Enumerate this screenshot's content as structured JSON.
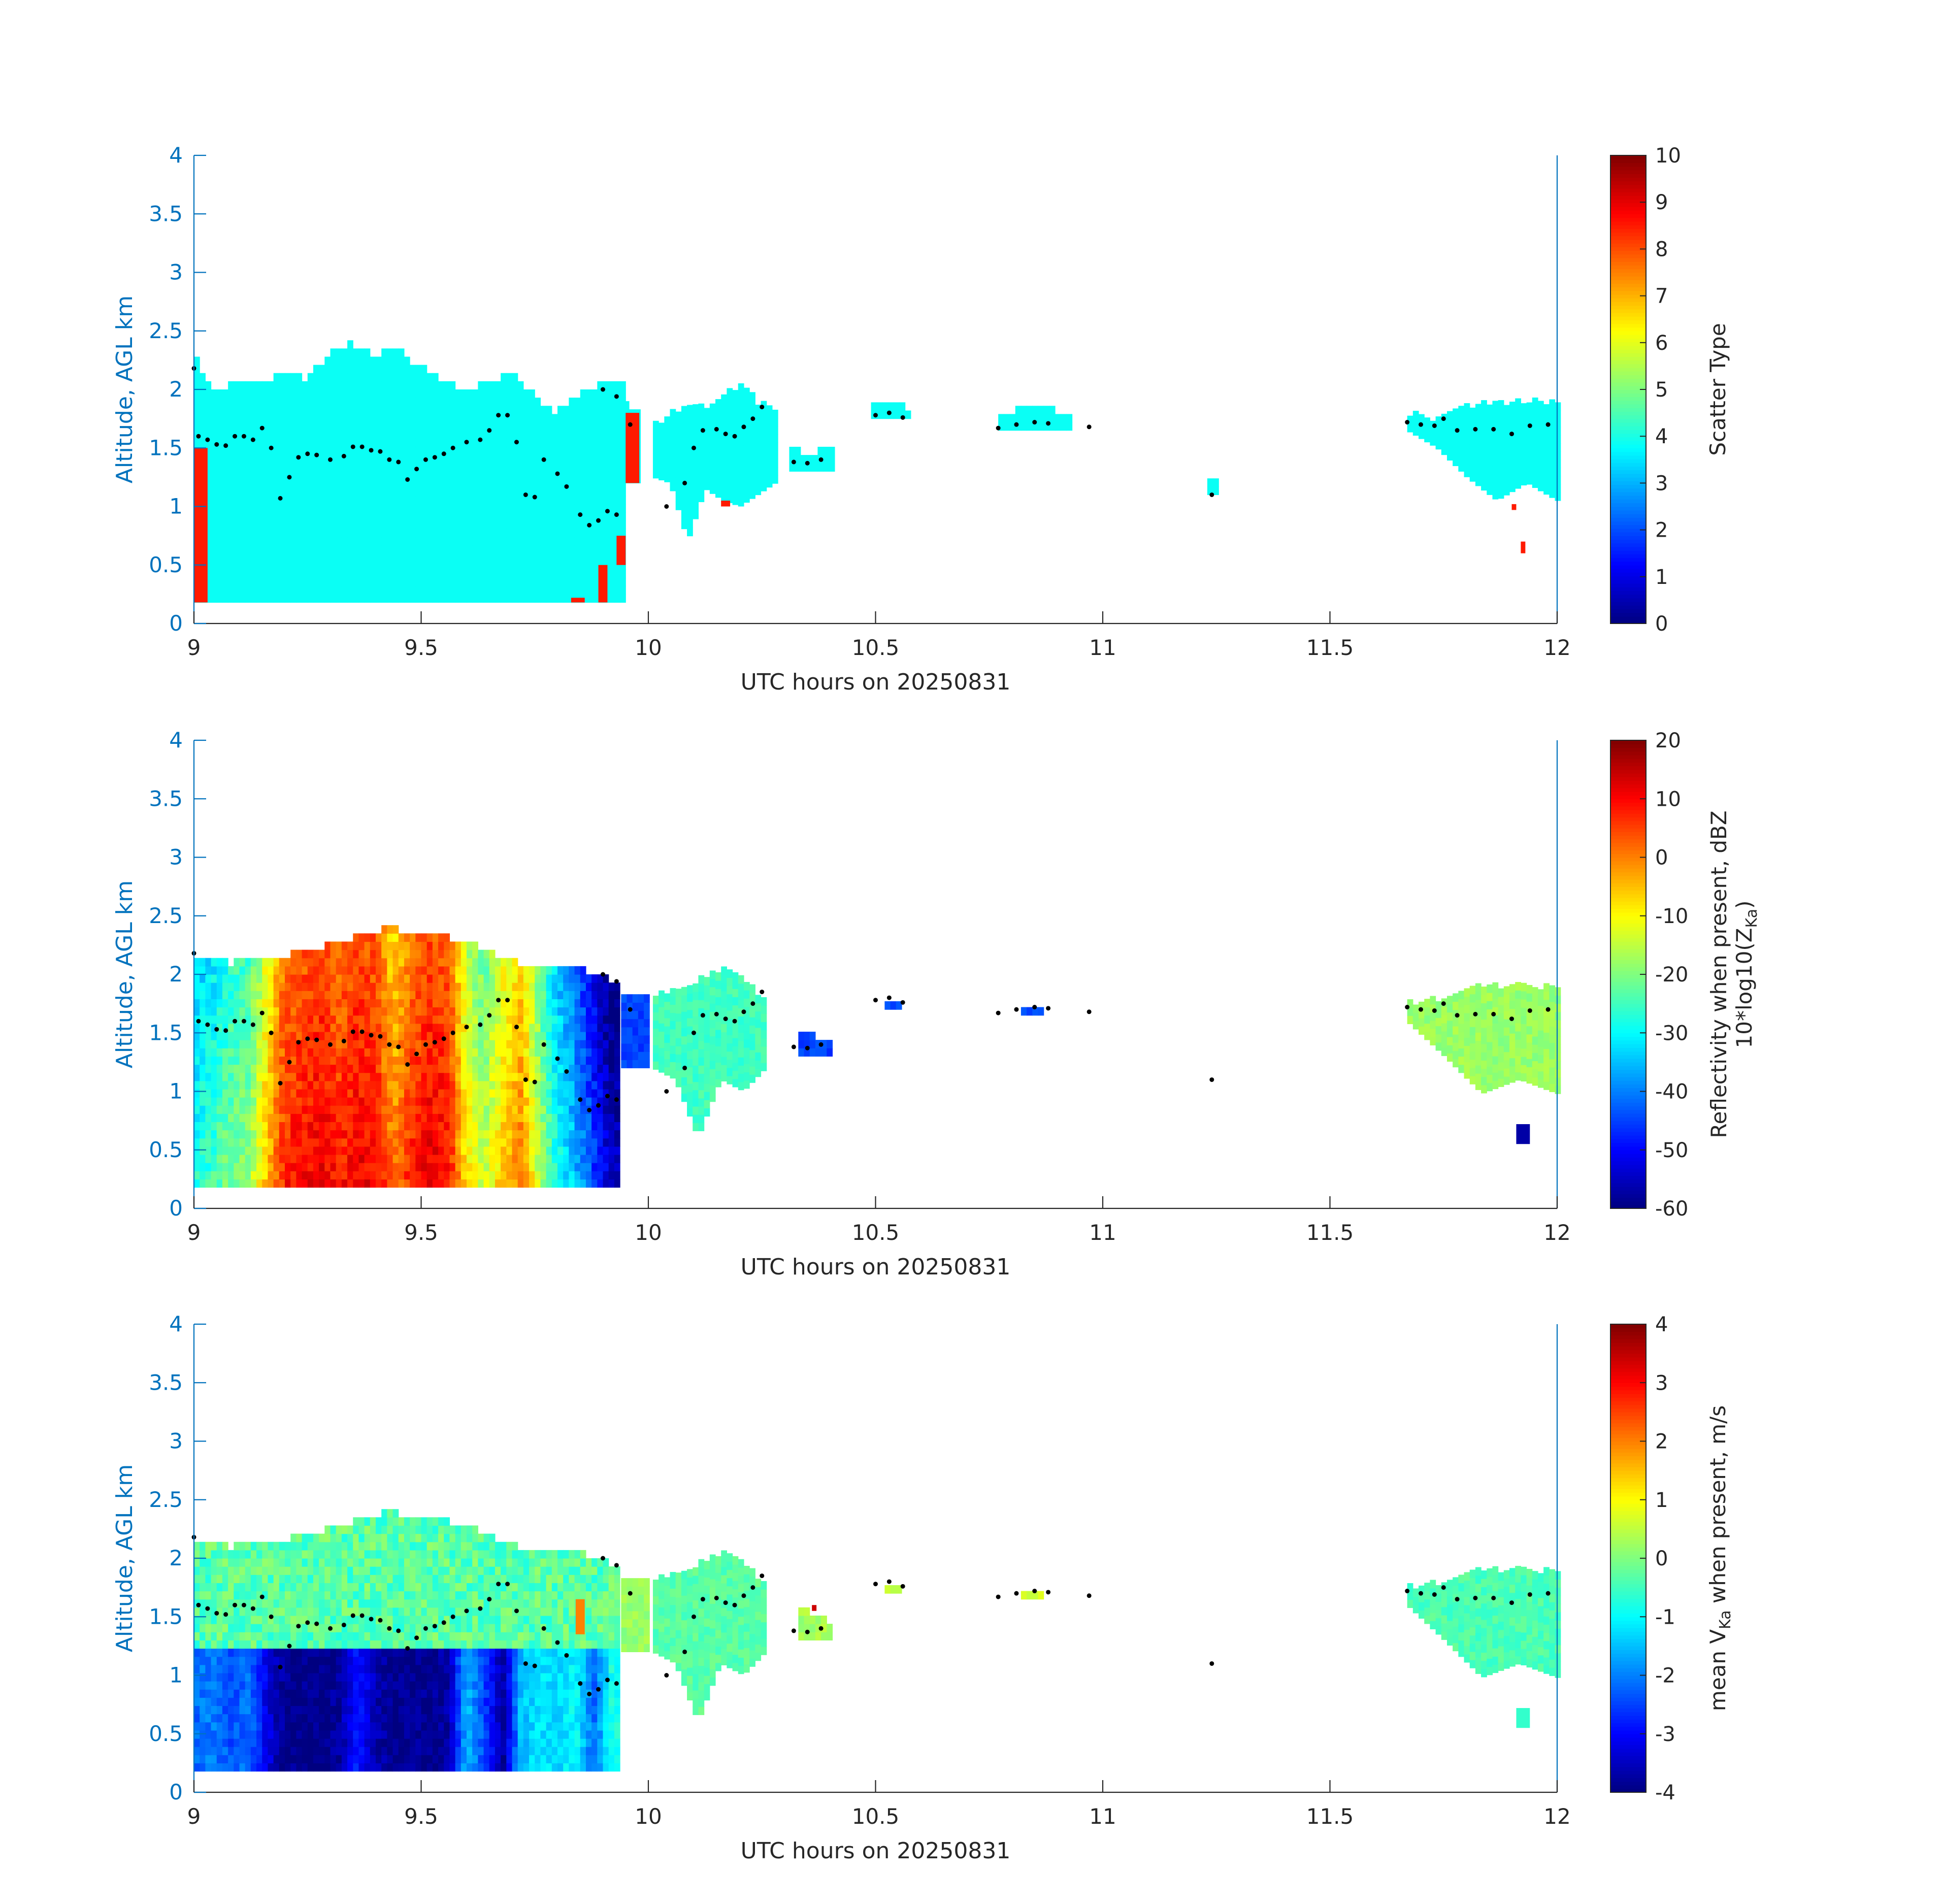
{
  "figure": {
    "background": "#ffffff"
  },
  "colormap": "jet",
  "chart_data": [
    {
      "type": "heatmap",
      "x_range": [
        9,
        12
      ],
      "y_range": [
        0,
        4
      ],
      "xticks": [
        9,
        9.5,
        10,
        10.5,
        11,
        11.5,
        12
      ],
      "yticks": [
        0,
        0.5,
        1,
        1.5,
        2,
        2.5,
        3,
        3.5,
        4
      ],
      "xtick_labels": [
        "9",
        "9.5",
        "10",
        "10.5",
        "11",
        "11.5",
        "12"
      ],
      "ytick_labels": [
        "0",
        "0.5",
        "1",
        "1.5",
        "2",
        "2.5",
        "3",
        "3.5",
        "4"
      ],
      "xlabel": "UTC hours on 20250831",
      "ylabel": "Altitude, AGL km",
      "colorbar": {
        "range": [
          0,
          10
        ],
        "ticks": [
          0,
          1,
          2,
          3,
          4,
          5,
          6,
          7,
          8,
          9,
          10
        ],
        "tick_labels": [
          "0",
          "1",
          "2",
          "3",
          "4",
          "5",
          "6",
          "7",
          "8",
          "9",
          "10"
        ],
        "label": "Scatter Type"
      },
      "regions": [
        {
          "x": [
            9.0,
            9.94
          ],
          "top": [
            2.3,
            1.95,
            2.1,
            2.05,
            2.15,
            2.1,
            2.3,
            2.4,
            2.3,
            2.35,
            2.2,
            2.1,
            2.0,
            2.05,
            2.15,
            2.0,
            1.8,
            1.95,
            2.05,
            2.1
          ],
          "bottom": 0.18,
          "value": 3.85
        },
        {
          "x": [
            9.92,
            9.98
          ],
          "top": [
            1.95,
            1.8
          ],
          "bottom": 1.2,
          "value": 3.85
        },
        {
          "x": [
            10.01,
            10.28
          ],
          "top": [
            1.7,
            1.8,
            1.9,
            1.85,
            1.95,
            2.05,
            1.9,
            1.8
          ],
          "bottom": [
            1.25,
            1.2,
            0.7,
            1.15,
            1.05,
            1.0,
            1.1,
            1.2
          ],
          "value": 3.85
        },
        {
          "x": [
            10.31,
            10.4
          ],
          "top": [
            1.5,
            1.45,
            1.5
          ],
          "bottom": 1.3,
          "value": 3.85
        },
        {
          "x": [
            10.49,
            10.57
          ],
          "top": [
            1.9,
            1.85
          ],
          "bottom": 1.75,
          "value": 3.85
        },
        {
          "x": [
            10.77,
            10.93
          ],
          "top": [
            1.8,
            1.85,
            1.8
          ],
          "bottom": 1.65,
          "value": 3.85
        },
        {
          "x": [
            11.23,
            11.25
          ],
          "top": [
            1.25
          ],
          "bottom": 1.1,
          "value": 3.85
        },
        {
          "x": [
            11.67,
            12.0
          ],
          "top": [
            1.8,
            1.75,
            1.85,
            1.9,
            1.9,
            1.9
          ],
          "bottom": [
            1.65,
            1.5,
            1.25,
            1.05,
            1.2,
            1.05
          ],
          "value": 3.85
        }
      ],
      "patches": [
        {
          "x": [
            9.0,
            9.03
          ],
          "y": [
            0.18,
            1.5
          ],
          "value": 8.5
        },
        {
          "x": [
            9.83,
            9.86
          ],
          "y": [
            0.18,
            0.22
          ],
          "value": 8.5
        },
        {
          "x": [
            9.89,
            9.91
          ],
          "y": [
            0.18,
            0.5
          ],
          "value": 8.5
        },
        {
          "x": [
            9.93,
            9.95
          ],
          "y": [
            0.5,
            0.75
          ],
          "value": 8.5
        },
        {
          "x": [
            9.95,
            9.98
          ],
          "y": [
            1.2,
            1.8
          ],
          "value": 8.5
        },
        {
          "x": [
            10.16,
            10.18
          ],
          "y": [
            1.0,
            1.05
          ],
          "value": 8.5
        },
        {
          "x": [
            11.9,
            11.91
          ],
          "y": [
            0.97,
            1.02
          ],
          "value": 8.5
        },
        {
          "x": [
            11.92,
            11.93
          ],
          "y": [
            0.6,
            0.7
          ],
          "value": 8.5
        }
      ],
      "melting_layer_points": [
        [
          9.0,
          2.18
        ],
        [
          9.01,
          1.6
        ],
        [
          9.03,
          1.57
        ],
        [
          9.05,
          1.53
        ],
        [
          9.07,
          1.52
        ],
        [
          9.09,
          1.6
        ],
        [
          9.11,
          1.6
        ],
        [
          9.13,
          1.57
        ],
        [
          9.15,
          1.67
        ],
        [
          9.17,
          1.5
        ],
        [
          9.19,
          1.07
        ],
        [
          9.21,
          1.25
        ],
        [
          9.23,
          1.42
        ],
        [
          9.25,
          1.45
        ],
        [
          9.27,
          1.44
        ],
        [
          9.3,
          1.4
        ],
        [
          9.33,
          1.43
        ],
        [
          9.35,
          1.51
        ],
        [
          9.37,
          1.51
        ],
        [
          9.39,
          1.48
        ],
        [
          9.41,
          1.47
        ],
        [
          9.43,
          1.4
        ],
        [
          9.45,
          1.38
        ],
        [
          9.47,
          1.23
        ],
        [
          9.49,
          1.32
        ],
        [
          9.51,
          1.4
        ],
        [
          9.53,
          1.42
        ],
        [
          9.55,
          1.45
        ],
        [
          9.57,
          1.5
        ],
        [
          9.6,
          1.55
        ],
        [
          9.63,
          1.57
        ],
        [
          9.65,
          1.65
        ],
        [
          9.67,
          1.78
        ],
        [
          9.69,
          1.78
        ],
        [
          9.71,
          1.55
        ],
        [
          9.73,
          1.1
        ],
        [
          9.75,
          1.08
        ],
        [
          9.77,
          1.4
        ],
        [
          9.8,
          1.28
        ],
        [
          9.82,
          1.17
        ],
        [
          9.85,
          0.93
        ],
        [
          9.87,
          0.84
        ],
        [
          9.89,
          0.88
        ],
        [
          9.91,
          0.96
        ],
        [
          9.93,
          0.93
        ],
        [
          9.9,
          2.0
        ],
        [
          9.93,
          1.94
        ],
        [
          9.96,
          1.7
        ],
        [
          10.04,
          1.0
        ],
        [
          10.08,
          1.2
        ],
        [
          10.1,
          1.5
        ],
        [
          10.12,
          1.65
        ],
        [
          10.15,
          1.66
        ],
        [
          10.17,
          1.62
        ],
        [
          10.19,
          1.6
        ],
        [
          10.21,
          1.68
        ],
        [
          10.23,
          1.75
        ],
        [
          10.25,
          1.85
        ],
        [
          10.32,
          1.38
        ],
        [
          10.35,
          1.37
        ],
        [
          10.38,
          1.4
        ],
        [
          10.5,
          1.78
        ],
        [
          10.53,
          1.8
        ],
        [
          10.56,
          1.76
        ],
        [
          10.77,
          1.67
        ],
        [
          10.81,
          1.7
        ],
        [
          10.85,
          1.72
        ],
        [
          10.88,
          1.71
        ],
        [
          10.97,
          1.68
        ],
        [
          11.24,
          1.1
        ],
        [
          11.67,
          1.72
        ],
        [
          11.7,
          1.7
        ],
        [
          11.73,
          1.69
        ],
        [
          11.75,
          1.75
        ],
        [
          11.78,
          1.65
        ],
        [
          11.82,
          1.66
        ],
        [
          11.86,
          1.66
        ],
        [
          11.9,
          1.62
        ],
        [
          11.94,
          1.69
        ],
        [
          11.98,
          1.7
        ]
      ]
    },
    {
      "type": "heatmap",
      "x_range": [
        9,
        12
      ],
      "y_range": [
        0,
        4
      ],
      "xticks": [
        9,
        9.5,
        10,
        10.5,
        11,
        11.5,
        12
      ],
      "yticks": [
        0,
        0.5,
        1,
        1.5,
        2,
        2.5,
        3,
        3.5,
        4
      ],
      "xtick_labels": [
        "9",
        "9.5",
        "10",
        "10.5",
        "11",
        "11.5",
        "12"
      ],
      "ytick_labels": [
        "0",
        "0.5",
        "1",
        "1.5",
        "2",
        "2.5",
        "3",
        "3.5",
        "4"
      ],
      "xlabel": "UTC hours on 20250831",
      "ylabel": "Altitude, AGL km",
      "colorbar": {
        "range": [
          -60,
          20
        ],
        "ticks": [
          -60,
          -50,
          -40,
          -30,
          -20,
          -10,
          0,
          10,
          20
        ],
        "tick_labels": [
          "-60",
          "-50",
          "-40",
          "-30",
          "-20",
          "-10",
          "0",
          "10",
          "20"
        ],
        "label_line1": "Reflectivity when present, dBZ",
        "label_line2": "10*log10(Z",
        "label_sub": "Ka",
        "label_line2_end": ")"
      },
      "regions": [
        {
          "x": [
            9.0,
            9.93
          ],
          "top": [
            2.18,
            2.1,
            2.15,
            2.2,
            2.3,
            2.4,
            2.35,
            2.3,
            2.15,
            2.05,
            2.05,
            1.95
          ],
          "bottom": 0.18,
          "value_profile": [
            [
              9.0,
              -28
            ],
            [
              9.04,
              -25
            ],
            [
              9.08,
              -20
            ],
            [
              9.12,
              -18
            ],
            [
              9.16,
              -5
            ],
            [
              9.2,
              8
            ],
            [
              9.24,
              10
            ],
            [
              9.28,
              12
            ],
            [
              9.32,
              8
            ],
            [
              9.36,
              12
            ],
            [
              9.4,
              10
            ],
            [
              9.44,
              0
            ],
            [
              9.48,
              8
            ],
            [
              9.52,
              12
            ],
            [
              9.56,
              10
            ],
            [
              9.6,
              -8
            ],
            [
              9.64,
              -15
            ],
            [
              9.68,
              -5
            ],
            [
              9.72,
              0
            ],
            [
              9.76,
              -15
            ],
            [
              9.8,
              -28
            ],
            [
              9.84,
              -35
            ],
            [
              9.88,
              -45
            ],
            [
              9.92,
              -55
            ]
          ]
        },
        {
          "x": [
            9.94,
            10.0
          ],
          "top": [
            1.8,
            1.8
          ],
          "bottom": 1.2,
          "value": -45
        },
        {
          "x": [
            10.01,
            10.26
          ],
          "top": [
            1.8,
            1.9,
            1.95,
            2.05,
            1.95,
            1.8
          ],
          "bottom": [
            1.2,
            1.1,
            0.6,
            1.1,
            1.0,
            1.2
          ],
          "value": -25
        },
        {
          "x": [
            10.33,
            10.4
          ],
          "top": [
            1.5,
            1.45
          ],
          "bottom": 1.3,
          "value": -45
        },
        {
          "x": [
            10.52,
            10.55
          ],
          "top": [
            1.8
          ],
          "bottom": 1.7,
          "value": -45
        },
        {
          "x": [
            10.82,
            10.86
          ],
          "top": [
            1.75
          ],
          "bottom": 1.65,
          "value": -45
        },
        {
          "x": [
            11.67,
            12.0
          ],
          "top": [
            1.75,
            1.8,
            1.9,
            1.9,
            1.9
          ],
          "bottom": [
            1.6,
            1.3,
            0.98,
            1.1,
            0.98
          ],
          "value": -18
        }
      ],
      "patches": [
        {
          "x": [
            11.91,
            11.94
          ],
          "y": [
            0.55,
            0.72
          ],
          "value": -57
        }
      ],
      "melting_layer_points": "same_as_panel_1"
    },
    {
      "type": "heatmap",
      "x_range": [
        9,
        12
      ],
      "y_range": [
        0,
        4
      ],
      "xticks": [
        9,
        9.5,
        10,
        10.5,
        11,
        11.5,
        12
      ],
      "yticks": [
        0,
        0.5,
        1,
        1.5,
        2,
        2.5,
        3,
        3.5,
        4
      ],
      "xtick_labels": [
        "9",
        "9.5",
        "10",
        "10.5",
        "11",
        "11.5",
        "12"
      ],
      "ytick_labels": [
        "0",
        "0.5",
        "1",
        "1.5",
        "2",
        "2.5",
        "3",
        "3.5",
        "4"
      ],
      "xlabel": "UTC hours on 20250831",
      "ylabel": "Altitude, AGL km",
      "colorbar": {
        "range": [
          -4,
          4
        ],
        "ticks": [
          -4,
          -3,
          -2,
          -1,
          0,
          1,
          2,
          3,
          4
        ],
        "tick_labels": [
          "-4",
          "-3",
          "-2",
          "-1",
          "0",
          "1",
          "2",
          "3",
          "4"
        ],
        "label_pre": "mean V",
        "label_sub": "Ka",
        "label_post": " when present, m/s"
      },
      "regions": [
        {
          "x": [
            9.0,
            9.93
          ],
          "top": [
            2.18,
            2.1,
            2.15,
            2.2,
            2.3,
            2.4,
            2.35,
            2.3,
            2.15,
            2.05,
            2.05,
            1.95
          ],
          "bottom": 0.18,
          "upper_value": -0.3,
          "lower_value_profile": [
            [
              9.0,
              -2.2
            ],
            [
              9.04,
              -2.0
            ],
            [
              9.08,
              -2.4
            ],
            [
              9.12,
              -2.1
            ],
            [
              9.16,
              -3.2
            ],
            [
              9.2,
              -3.9
            ],
            [
              9.24,
              -3.9
            ],
            [
              9.28,
              -3.9
            ],
            [
              9.32,
              -3.8
            ],
            [
              9.36,
              -2.8
            ],
            [
              9.4,
              -3.6
            ],
            [
              9.44,
              -3.9
            ],
            [
              9.48,
              -3.9
            ],
            [
              9.52,
              -3.9
            ],
            [
              9.56,
              -3.7
            ],
            [
              9.6,
              -1.5
            ],
            [
              9.64,
              -2.5
            ],
            [
              9.68,
              -3.8
            ],
            [
              9.72,
              -1.5
            ],
            [
              9.76,
              -1.2
            ],
            [
              9.8,
              -1.3
            ],
            [
              9.84,
              -1.0
            ],
            [
              9.88,
              -2.2
            ],
            [
              9.92,
              -0.8
            ]
          ],
          "split_altitude": 1.22
        },
        {
          "x": [
            9.94,
            10.0
          ],
          "top": [
            1.8,
            1.8
          ],
          "bottom": 1.2,
          "value": 0.2
        },
        {
          "x": [
            10.01,
            10.26
          ],
          "top": [
            1.8,
            1.9,
            1.95,
            2.05,
            1.95,
            1.8
          ],
          "bottom": [
            1.2,
            1.1,
            0.6,
            1.1,
            1.0,
            1.2
          ],
          "value": -0.3
        },
        {
          "x": [
            10.33,
            10.4
          ],
          "top": [
            1.6,
            1.45
          ],
          "bottom": 1.3,
          "value": 0.3
        },
        {
          "x": [
            10.52,
            10.55
          ],
          "top": [
            1.8
          ],
          "bottom": 1.7,
          "value": 0.5
        },
        {
          "x": [
            10.82,
            10.86
          ],
          "top": [
            1.75
          ],
          "bottom": 1.65,
          "value": 0.6
        },
        {
          "x": [
            11.67,
            12.0
          ],
          "top": [
            1.75,
            1.8,
            1.9,
            1.9,
            1.9
          ],
          "bottom": [
            1.6,
            1.3,
            0.98,
            1.1,
            0.98
          ],
          "value": -0.4
        }
      ],
      "patches": [
        {
          "x": [
            11.91,
            11.94
          ],
          "y": [
            0.55,
            0.72
          ],
          "value": -0.6
        },
        {
          "x": [
            9.84,
            9.86
          ],
          "y": [
            1.35,
            1.65
          ],
          "value": 2.0
        },
        {
          "x": [
            10.36,
            10.37
          ],
          "y": [
            1.55,
            1.6
          ],
          "value": 3.4
        }
      ],
      "melting_layer_points": "same_as_panel_1"
    }
  ]
}
